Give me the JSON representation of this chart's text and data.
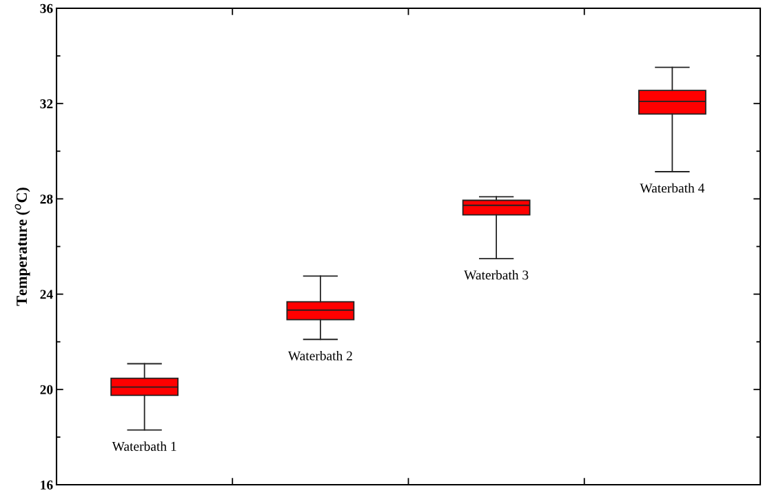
{
  "chart_data": {
    "type": "box",
    "ylabel": "Temperature ($^{o}$C)",
    "categories": [
      "Waterbath 1",
      "Waterbath 2",
      "Waterbath 3",
      "Waterbath 4"
    ],
    "series": [
      {
        "color": "#ff0000",
        "boxes": [
          {
            "low": 18.3,
            "q1": 19.75,
            "median": 20.1,
            "q3": 20.47,
            "high": 21.08
          },
          {
            "low": 22.1,
            "q1": 22.93,
            "median": 23.33,
            "q3": 23.68,
            "high": 24.76
          },
          {
            "low": 25.49,
            "q1": 27.33,
            "median": 27.73,
            "q3": 27.94,
            "high": 28.09
          },
          {
            "low": 29.14,
            "q1": 31.56,
            "median": 32.09,
            "q3": 32.55,
            "high": 33.52
          }
        ]
      }
    ],
    "ylim": [
      16,
      36
    ],
    "yticks": [
      16,
      20,
      24,
      28,
      32,
      36
    ],
    "grid": false
  }
}
